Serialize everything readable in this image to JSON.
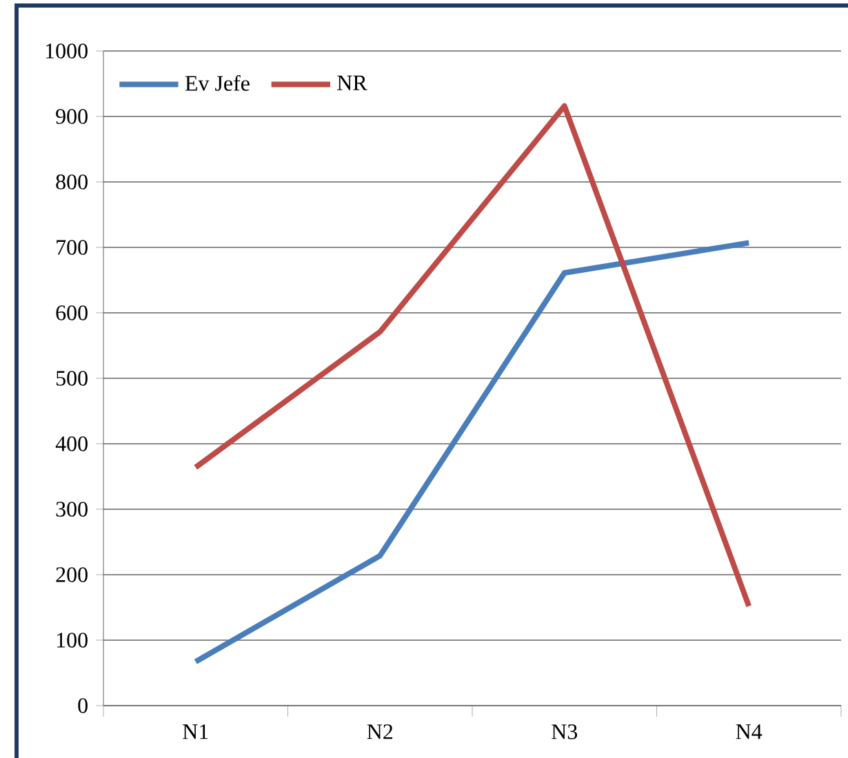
{
  "chart_data": {
    "type": "line",
    "categories": [
      "N1",
      "N2",
      "N3",
      "N4"
    ],
    "series": [
      {
        "name": "Ev Jefe",
        "color": "#4a7ebb",
        "values": [
          67,
          229,
          661,
          707
        ]
      },
      {
        "name": "NR",
        "color": "#be4b48",
        "values": [
          364,
          571,
          916,
          152
        ]
      }
    ],
    "ylim": [
      0,
      1000
    ],
    "yticks": [
      0,
      100,
      200,
      300,
      400,
      500,
      600,
      700,
      800,
      900,
      1000
    ],
    "grid": "y",
    "legend": "top left",
    "marker": "none"
  }
}
